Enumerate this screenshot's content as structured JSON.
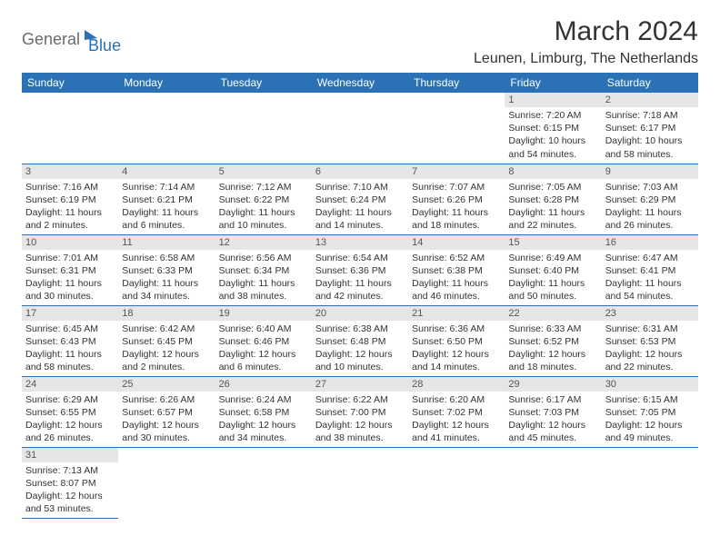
{
  "logo": {
    "part1": "General",
    "part2": "Blue"
  },
  "title": "March 2024",
  "location": "Leunen, Limburg, The Netherlands",
  "accent_color": "#2a72b5",
  "header_bg": "#2a72b5",
  "header_text_color": "#ffffff",
  "daynum_bg": "#e6e6e6",
  "body_bg": "#ffffff",
  "font_family": "Arial",
  "columns": [
    "Sunday",
    "Monday",
    "Tuesday",
    "Wednesday",
    "Thursday",
    "Friday",
    "Saturday"
  ],
  "weeks": [
    [
      null,
      null,
      null,
      null,
      null,
      {
        "n": "1",
        "sr": "Sunrise: 7:20 AM",
        "ss": "Sunset: 6:15 PM",
        "dl": "Daylight: 10 hours and 54 minutes."
      },
      {
        "n": "2",
        "sr": "Sunrise: 7:18 AM",
        "ss": "Sunset: 6:17 PM",
        "dl": "Daylight: 10 hours and 58 minutes."
      }
    ],
    [
      {
        "n": "3",
        "sr": "Sunrise: 7:16 AM",
        "ss": "Sunset: 6:19 PM",
        "dl": "Daylight: 11 hours and 2 minutes."
      },
      {
        "n": "4",
        "sr": "Sunrise: 7:14 AM",
        "ss": "Sunset: 6:21 PM",
        "dl": "Daylight: 11 hours and 6 minutes."
      },
      {
        "n": "5",
        "sr": "Sunrise: 7:12 AM",
        "ss": "Sunset: 6:22 PM",
        "dl": "Daylight: 11 hours and 10 minutes."
      },
      {
        "n": "6",
        "sr": "Sunrise: 7:10 AM",
        "ss": "Sunset: 6:24 PM",
        "dl": "Daylight: 11 hours and 14 minutes."
      },
      {
        "n": "7",
        "sr": "Sunrise: 7:07 AM",
        "ss": "Sunset: 6:26 PM",
        "dl": "Daylight: 11 hours and 18 minutes."
      },
      {
        "n": "8",
        "sr": "Sunrise: 7:05 AM",
        "ss": "Sunset: 6:28 PM",
        "dl": "Daylight: 11 hours and 22 minutes."
      },
      {
        "n": "9",
        "sr": "Sunrise: 7:03 AM",
        "ss": "Sunset: 6:29 PM",
        "dl": "Daylight: 11 hours and 26 minutes."
      }
    ],
    [
      {
        "n": "10",
        "sr": "Sunrise: 7:01 AM",
        "ss": "Sunset: 6:31 PM",
        "dl": "Daylight: 11 hours and 30 minutes."
      },
      {
        "n": "11",
        "sr": "Sunrise: 6:58 AM",
        "ss": "Sunset: 6:33 PM",
        "dl": "Daylight: 11 hours and 34 minutes."
      },
      {
        "n": "12",
        "sr": "Sunrise: 6:56 AM",
        "ss": "Sunset: 6:34 PM",
        "dl": "Daylight: 11 hours and 38 minutes."
      },
      {
        "n": "13",
        "sr": "Sunrise: 6:54 AM",
        "ss": "Sunset: 6:36 PM",
        "dl": "Daylight: 11 hours and 42 minutes."
      },
      {
        "n": "14",
        "sr": "Sunrise: 6:52 AM",
        "ss": "Sunset: 6:38 PM",
        "dl": "Daylight: 11 hours and 46 minutes."
      },
      {
        "n": "15",
        "sr": "Sunrise: 6:49 AM",
        "ss": "Sunset: 6:40 PM",
        "dl": "Daylight: 11 hours and 50 minutes."
      },
      {
        "n": "16",
        "sr": "Sunrise: 6:47 AM",
        "ss": "Sunset: 6:41 PM",
        "dl": "Daylight: 11 hours and 54 minutes."
      }
    ],
    [
      {
        "n": "17",
        "sr": "Sunrise: 6:45 AM",
        "ss": "Sunset: 6:43 PM",
        "dl": "Daylight: 11 hours and 58 minutes."
      },
      {
        "n": "18",
        "sr": "Sunrise: 6:42 AM",
        "ss": "Sunset: 6:45 PM",
        "dl": "Daylight: 12 hours and 2 minutes."
      },
      {
        "n": "19",
        "sr": "Sunrise: 6:40 AM",
        "ss": "Sunset: 6:46 PM",
        "dl": "Daylight: 12 hours and 6 minutes."
      },
      {
        "n": "20",
        "sr": "Sunrise: 6:38 AM",
        "ss": "Sunset: 6:48 PM",
        "dl": "Daylight: 12 hours and 10 minutes."
      },
      {
        "n": "21",
        "sr": "Sunrise: 6:36 AM",
        "ss": "Sunset: 6:50 PM",
        "dl": "Daylight: 12 hours and 14 minutes."
      },
      {
        "n": "22",
        "sr": "Sunrise: 6:33 AM",
        "ss": "Sunset: 6:52 PM",
        "dl": "Daylight: 12 hours and 18 minutes."
      },
      {
        "n": "23",
        "sr": "Sunrise: 6:31 AM",
        "ss": "Sunset: 6:53 PM",
        "dl": "Daylight: 12 hours and 22 minutes."
      }
    ],
    [
      {
        "n": "24",
        "sr": "Sunrise: 6:29 AM",
        "ss": "Sunset: 6:55 PM",
        "dl": "Daylight: 12 hours and 26 minutes."
      },
      {
        "n": "25",
        "sr": "Sunrise: 6:26 AM",
        "ss": "Sunset: 6:57 PM",
        "dl": "Daylight: 12 hours and 30 minutes."
      },
      {
        "n": "26",
        "sr": "Sunrise: 6:24 AM",
        "ss": "Sunset: 6:58 PM",
        "dl": "Daylight: 12 hours and 34 minutes."
      },
      {
        "n": "27",
        "sr": "Sunrise: 6:22 AM",
        "ss": "Sunset: 7:00 PM",
        "dl": "Daylight: 12 hours and 38 minutes."
      },
      {
        "n": "28",
        "sr": "Sunrise: 6:20 AM",
        "ss": "Sunset: 7:02 PM",
        "dl": "Daylight: 12 hours and 41 minutes."
      },
      {
        "n": "29",
        "sr": "Sunrise: 6:17 AM",
        "ss": "Sunset: 7:03 PM",
        "dl": "Daylight: 12 hours and 45 minutes."
      },
      {
        "n": "30",
        "sr": "Sunrise: 6:15 AM",
        "ss": "Sunset: 7:05 PM",
        "dl": "Daylight: 12 hours and 49 minutes."
      }
    ],
    [
      {
        "n": "31",
        "sr": "Sunrise: 7:13 AM",
        "ss": "Sunset: 8:07 PM",
        "dl": "Daylight: 12 hours and 53 minutes."
      },
      null,
      null,
      null,
      null,
      null,
      null
    ]
  ]
}
